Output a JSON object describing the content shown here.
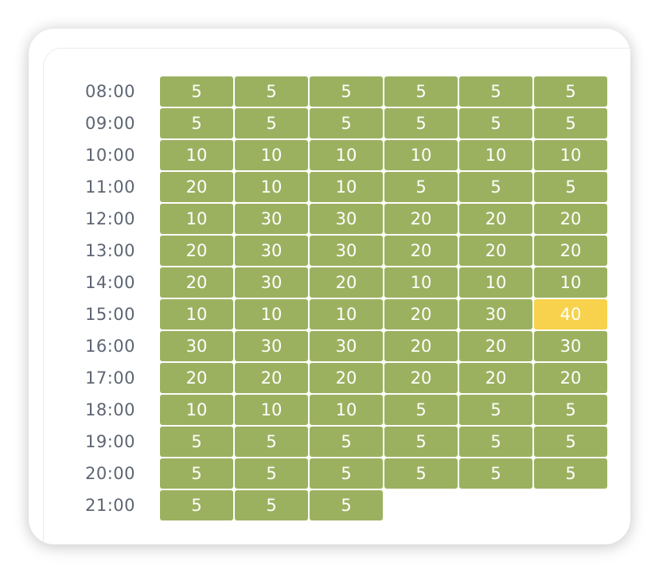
{
  "colors": {
    "cell": "#9cb160",
    "highlight": "#f8d24c",
    "label": "#5d6573"
  },
  "schedule": [
    {
      "time": "08:00",
      "values": [
        "5",
        "5",
        "5",
        "5",
        "5",
        "5"
      ]
    },
    {
      "time": "09:00",
      "values": [
        "5",
        "5",
        "5",
        "5",
        "5",
        "5"
      ]
    },
    {
      "time": "10:00",
      "values": [
        "10",
        "10",
        "10",
        "10",
        "10",
        "10"
      ]
    },
    {
      "time": "11:00",
      "values": [
        "20",
        "10",
        "10",
        "5",
        "5",
        "5"
      ]
    },
    {
      "time": "12:00",
      "values": [
        "10",
        "30",
        "30",
        "20",
        "20",
        "20"
      ]
    },
    {
      "time": "13:00",
      "values": [
        "20",
        "30",
        "30",
        "20",
        "20",
        "20"
      ]
    },
    {
      "time": "14:00",
      "values": [
        "20",
        "30",
        "20",
        "10",
        "10",
        "10"
      ]
    },
    {
      "time": "15:00",
      "values": [
        "10",
        "10",
        "10",
        "20",
        "30",
        "40"
      ],
      "highlight": [
        5
      ]
    },
    {
      "time": "16:00",
      "values": [
        "30",
        "30",
        "30",
        "20",
        "20",
        "30"
      ]
    },
    {
      "time": "17:00",
      "values": [
        "20",
        "20",
        "20",
        "20",
        "20",
        "20"
      ]
    },
    {
      "time": "18:00",
      "values": [
        "10",
        "10",
        "10",
        "5",
        "5",
        "5"
      ]
    },
    {
      "time": "19:00",
      "values": [
        "5",
        "5",
        "5",
        "5",
        "5",
        "5"
      ]
    },
    {
      "time": "20:00",
      "values": [
        "5",
        "5",
        "5",
        "5",
        "5",
        "5"
      ]
    },
    {
      "time": "21:00",
      "values": [
        "5",
        "5",
        "5"
      ]
    }
  ]
}
